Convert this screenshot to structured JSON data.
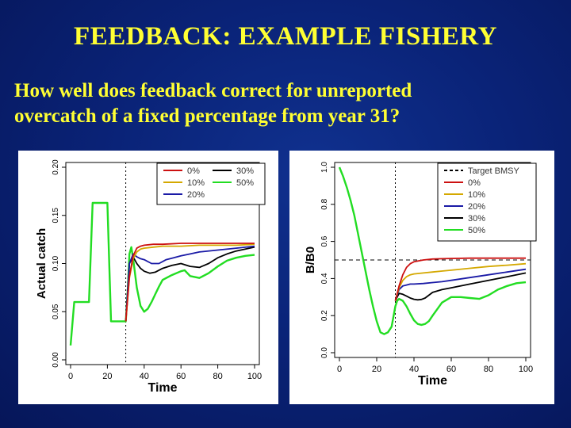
{
  "slide": {
    "title": "FEEDBACK: EXAMPLE FISHERY",
    "subtitle_line1": "How well does feedback correct for unreported",
    "subtitle_line2": "overcatch of a fixed percentage from year 31?"
  },
  "chart_data": [
    {
      "type": "line",
      "title": "",
      "xlabel": "Time",
      "ylabel": "Actual catch",
      "xlim": [
        0,
        100
      ],
      "ylim": [
        0,
        0.2
      ],
      "xticks": [
        0,
        20,
        40,
        60,
        80,
        100
      ],
      "yticks": [
        "0.00",
        "0.05",
        "0.10",
        "0.15",
        "0.20"
      ],
      "vline_x": 30,
      "legend": {
        "placement": "top-right",
        "columns": 2,
        "entries": [
          "0%",
          "10%",
          "20%",
          "30%",
          "50%"
        ]
      },
      "series": [
        {
          "name": "0%",
          "color": "#cc1111",
          "x": [
            30,
            32,
            34,
            36,
            38,
            40,
            45,
            50,
            60,
            70,
            80,
            90,
            100
          ],
          "y": [
            0.04,
            0.087,
            0.108,
            0.116,
            0.118,
            0.119,
            0.12,
            0.12,
            0.121,
            0.121,
            0.121,
            0.121,
            0.121
          ]
        },
        {
          "name": "10%",
          "color": "#d4a800",
          "x": [
            30,
            32,
            34,
            36,
            38,
            40,
            45,
            50,
            60,
            70,
            80,
            90,
            100
          ],
          "y": [
            0.04,
            0.085,
            0.105,
            0.112,
            0.115,
            0.116,
            0.117,
            0.118,
            0.118,
            0.119,
            0.119,
            0.119,
            0.12
          ]
        },
        {
          "name": "20%",
          "color": "#1a1aa6",
          "x": [
            30,
            32,
            34,
            36,
            38,
            40,
            44,
            48,
            52,
            56,
            60,
            65,
            70,
            80,
            90,
            100
          ],
          "y": [
            0.04,
            0.1,
            0.11,
            0.107,
            0.105,
            0.104,
            0.1,
            0.1,
            0.104,
            0.106,
            0.108,
            0.11,
            0.112,
            0.114,
            0.116,
            0.118
          ]
        },
        {
          "name": "30%",
          "color": "#000000",
          "x": [
            30,
            32,
            34,
            36,
            38,
            40,
            43,
            46,
            50,
            55,
            60,
            65,
            70,
            75,
            80,
            85,
            90,
            95,
            100
          ],
          "y": [
            0.04,
            0.1,
            0.107,
            0.1,
            0.095,
            0.092,
            0.09,
            0.091,
            0.095,
            0.098,
            0.1,
            0.097,
            0.096,
            0.1,
            0.106,
            0.11,
            0.113,
            0.115,
            0.117
          ]
        },
        {
          "name": "50%",
          "color": "#22dd22",
          "x": [
            0,
            2,
            4,
            6,
            8,
            10,
            12,
            14,
            16,
            18,
            20,
            22,
            24,
            26,
            28,
            30,
            31,
            32,
            33,
            34,
            36,
            38,
            40,
            42,
            44,
            46,
            48,
            50,
            55,
            60,
            62,
            65,
            70,
            75,
            80,
            85,
            90,
            95,
            100
          ],
          "y": [
            0.015,
            0.06,
            0.06,
            0.06,
            0.06,
            0.06,
            0.163,
            0.163,
            0.163,
            0.163,
            0.163,
            0.04,
            0.04,
            0.04,
            0.04,
            0.04,
            0.07,
            0.11,
            0.117,
            0.105,
            0.075,
            0.056,
            0.05,
            0.053,
            0.06,
            0.068,
            0.076,
            0.083,
            0.088,
            0.092,
            0.093,
            0.087,
            0.085,
            0.09,
            0.097,
            0.103,
            0.106,
            0.108,
            0.109
          ]
        }
      ]
    },
    {
      "type": "line",
      "title": "",
      "xlabel": "Time",
      "ylabel": "B/B0",
      "xlim": [
        0,
        100
      ],
      "ylim": [
        0,
        1.0
      ],
      "xticks": [
        0,
        20,
        40,
        60,
        80,
        100
      ],
      "yticks": [
        "0.0",
        "0.2",
        "0.4",
        "0.6",
        "0.8",
        "1.0"
      ],
      "vline_x": 30,
      "reference_line": {
        "name": "Target BMSY",
        "y": 0.5,
        "color": "#000000",
        "style": "dashed"
      },
      "legend": {
        "placement": "top-right",
        "columns": 1,
        "entries": [
          "Target BMSY",
          "0%",
          "10%",
          "20%",
          "30%",
          "50%"
        ]
      },
      "series": [
        {
          "name": "0%",
          "color": "#cc1111",
          "x": [
            30,
            32,
            34,
            36,
            38,
            40,
            45,
            50,
            55,
            60,
            70,
            80,
            90,
            100
          ],
          "y": [
            0.28,
            0.36,
            0.42,
            0.46,
            0.48,
            0.49,
            0.5,
            0.505,
            0.507,
            0.508,
            0.51,
            0.51,
            0.51,
            0.51
          ]
        },
        {
          "name": "10%",
          "color": "#d4a800",
          "x": [
            30,
            32,
            34,
            36,
            38,
            40,
            45,
            50,
            55,
            60,
            70,
            80,
            90,
            100
          ],
          "y": [
            0.28,
            0.35,
            0.39,
            0.41,
            0.42,
            0.425,
            0.43,
            0.435,
            0.44,
            0.445,
            0.455,
            0.465,
            0.472,
            0.48
          ]
        },
        {
          "name": "20%",
          "color": "#1a1aa6",
          "x": [
            30,
            32,
            34,
            36,
            38,
            40,
            45,
            50,
            55,
            60,
            70,
            80,
            90,
            100
          ],
          "y": [
            0.28,
            0.34,
            0.36,
            0.365,
            0.37,
            0.37,
            0.373,
            0.378,
            0.383,
            0.39,
            0.405,
            0.42,
            0.435,
            0.45
          ]
        },
        {
          "name": "30%",
          "color": "#000000",
          "x": [
            30,
            32,
            34,
            36,
            38,
            40,
            42,
            44,
            46,
            50,
            55,
            60,
            70,
            80,
            90,
            100
          ],
          "y": [
            0.28,
            0.32,
            0.315,
            0.305,
            0.295,
            0.288,
            0.285,
            0.287,
            0.295,
            0.325,
            0.34,
            0.35,
            0.37,
            0.39,
            0.41,
            0.43
          ]
        },
        {
          "name": "50%",
          "color": "#22dd22",
          "x": [
            0,
            2,
            4,
            6,
            8,
            10,
            12,
            14,
            16,
            18,
            20,
            22,
            24,
            26,
            28,
            30,
            31,
            32,
            34,
            36,
            38,
            40,
            42,
            44,
            46,
            48,
            50,
            55,
            60,
            65,
            70,
            75,
            80,
            85,
            90,
            95,
            100
          ],
          "y": [
            1.0,
            0.95,
            0.89,
            0.82,
            0.74,
            0.64,
            0.54,
            0.44,
            0.34,
            0.25,
            0.17,
            0.11,
            0.1,
            0.11,
            0.14,
            0.25,
            0.28,
            0.29,
            0.28,
            0.25,
            0.21,
            0.175,
            0.155,
            0.15,
            0.155,
            0.17,
            0.2,
            0.27,
            0.3,
            0.3,
            0.295,
            0.29,
            0.31,
            0.34,
            0.36,
            0.375,
            0.38
          ]
        }
      ]
    }
  ]
}
